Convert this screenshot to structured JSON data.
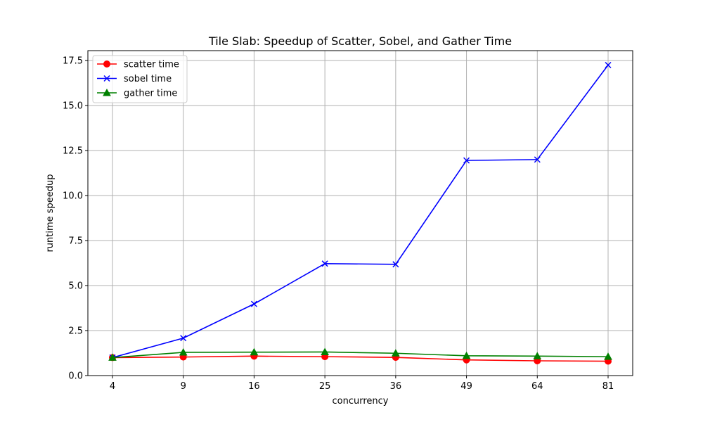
{
  "chart_data": {
    "type": "line",
    "title": "Tile Slab: Speedup of Scatter, Sobel, and Gather Time",
    "xlabel": "concurrency",
    "ylabel": "runtime speedup",
    "x": [
      4,
      9,
      16,
      25,
      36,
      49,
      64,
      81
    ],
    "x_tick_labels": [
      "4",
      "9",
      "16",
      "25",
      "36",
      "49",
      "64",
      "81"
    ],
    "ylim": [
      0,
      18.05
    ],
    "y_ticks": [
      0,
      2.5,
      5,
      7.5,
      10,
      12.5,
      15,
      17.5
    ],
    "y_tick_labels": [
      "0.0",
      "2.5",
      "5.0",
      "7.5",
      "10.0",
      "12.5",
      "15.0",
      "17.5"
    ],
    "grid": true,
    "legend_position": "top-left",
    "series": [
      {
        "name": "scatter time",
        "color": "#ff0000",
        "marker": "circle",
        "values": [
          1.0,
          1.03,
          1.08,
          1.05,
          1.01,
          0.87,
          0.82,
          0.8
        ]
      },
      {
        "name": "sobel time",
        "color": "#0000ff",
        "marker": "x",
        "values": [
          1.0,
          2.08,
          3.98,
          6.22,
          6.18,
          11.95,
          12.0,
          17.25
        ]
      },
      {
        "name": "gather time",
        "color": "#008000",
        "marker": "triangle",
        "values": [
          1.0,
          1.29,
          1.3,
          1.31,
          1.24,
          1.1,
          1.08,
          1.05
        ]
      }
    ]
  }
}
